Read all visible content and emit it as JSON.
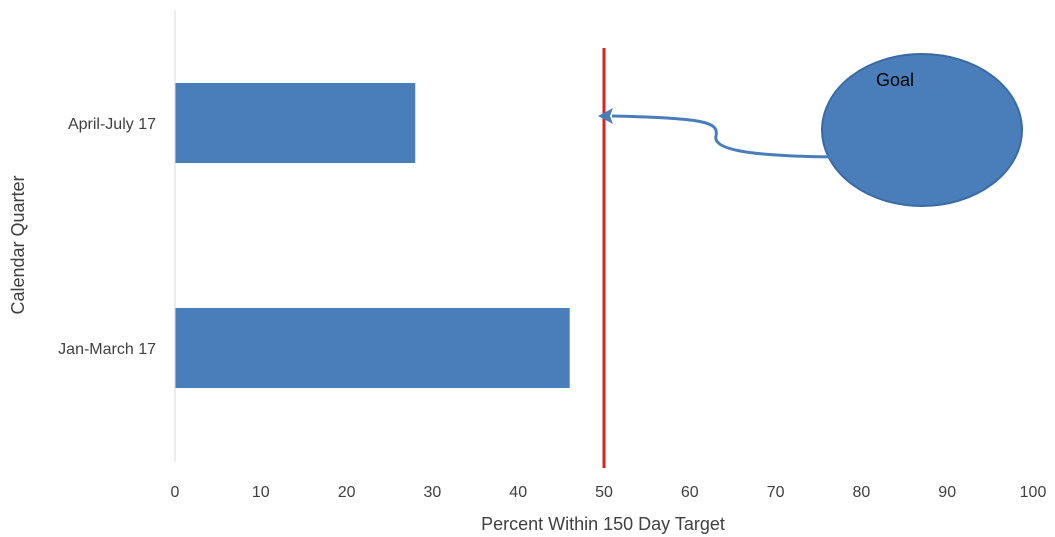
{
  "chart_data": {
    "type": "bar",
    "orientation": "horizontal",
    "categories": [
      "April-July 17",
      "Jan-March 17"
    ],
    "values": [
      28,
      46
    ],
    "xlabel": "Percent Within 150 Day Target",
    "ylabel": "Calendar Quarter",
    "xlim": [
      0,
      100
    ],
    "x_ticks": [
      0,
      10,
      20,
      30,
      40,
      50,
      60,
      70,
      80,
      90,
      100
    ],
    "grid": false,
    "legend": "none",
    "reference_line": {
      "value": 50,
      "color": "#e02020"
    },
    "annotation": {
      "text": "Goal",
      "points_to": 50
    }
  },
  "colors": {
    "bar": "#4a7ebb",
    "bar_dark": "#3a6aa3",
    "goal_line": "#e02020",
    "axis_line": "#d9d9d9",
    "text": "#404040"
  }
}
